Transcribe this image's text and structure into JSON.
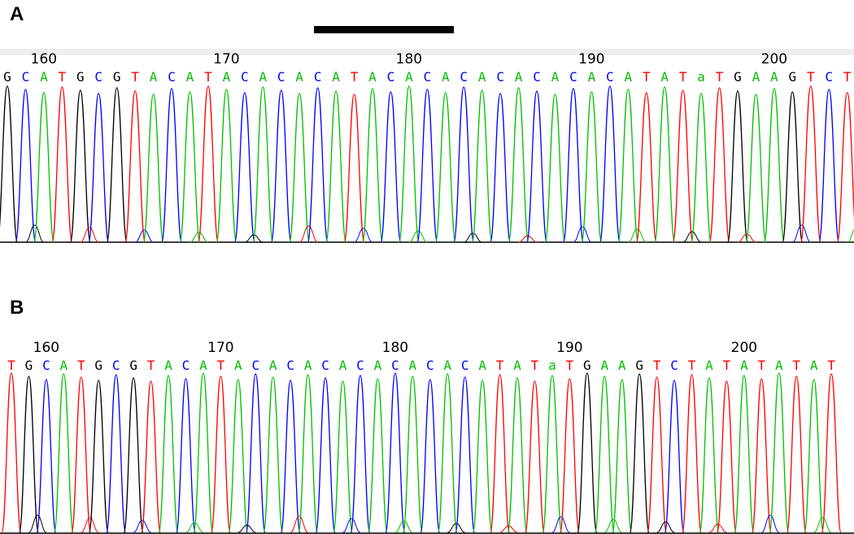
{
  "figure": {
    "colors": {
      "A": "#00c000",
      "C": "#0000ff",
      "G": "#000000",
      "T": "#ff0000",
      "a": "#00c000"
    },
    "panels": [
      {
        "label": "A",
        "has_scale_bar": true,
        "sequence": "GCATGCGTACATACACACATACACACACACACACATATaTGAAGTCTA",
        "first_base_position": 158,
        "position_ticks": [
          "160",
          "170",
          "180",
          "190",
          "200"
        ],
        "tick_positions": [
          160,
          170,
          180,
          190,
          200
        ]
      },
      {
        "label": "B",
        "has_scale_bar": false,
        "sequence": "TGCATGCGTACATACACACACACACACATATaTGAAGTCTATATATAT",
        "first_base_position": 158,
        "position_ticks": [
          "160",
          "170",
          "180",
          "190",
          "200"
        ],
        "tick_positions": [
          160,
          170,
          180,
          190,
          200
        ]
      }
    ]
  }
}
